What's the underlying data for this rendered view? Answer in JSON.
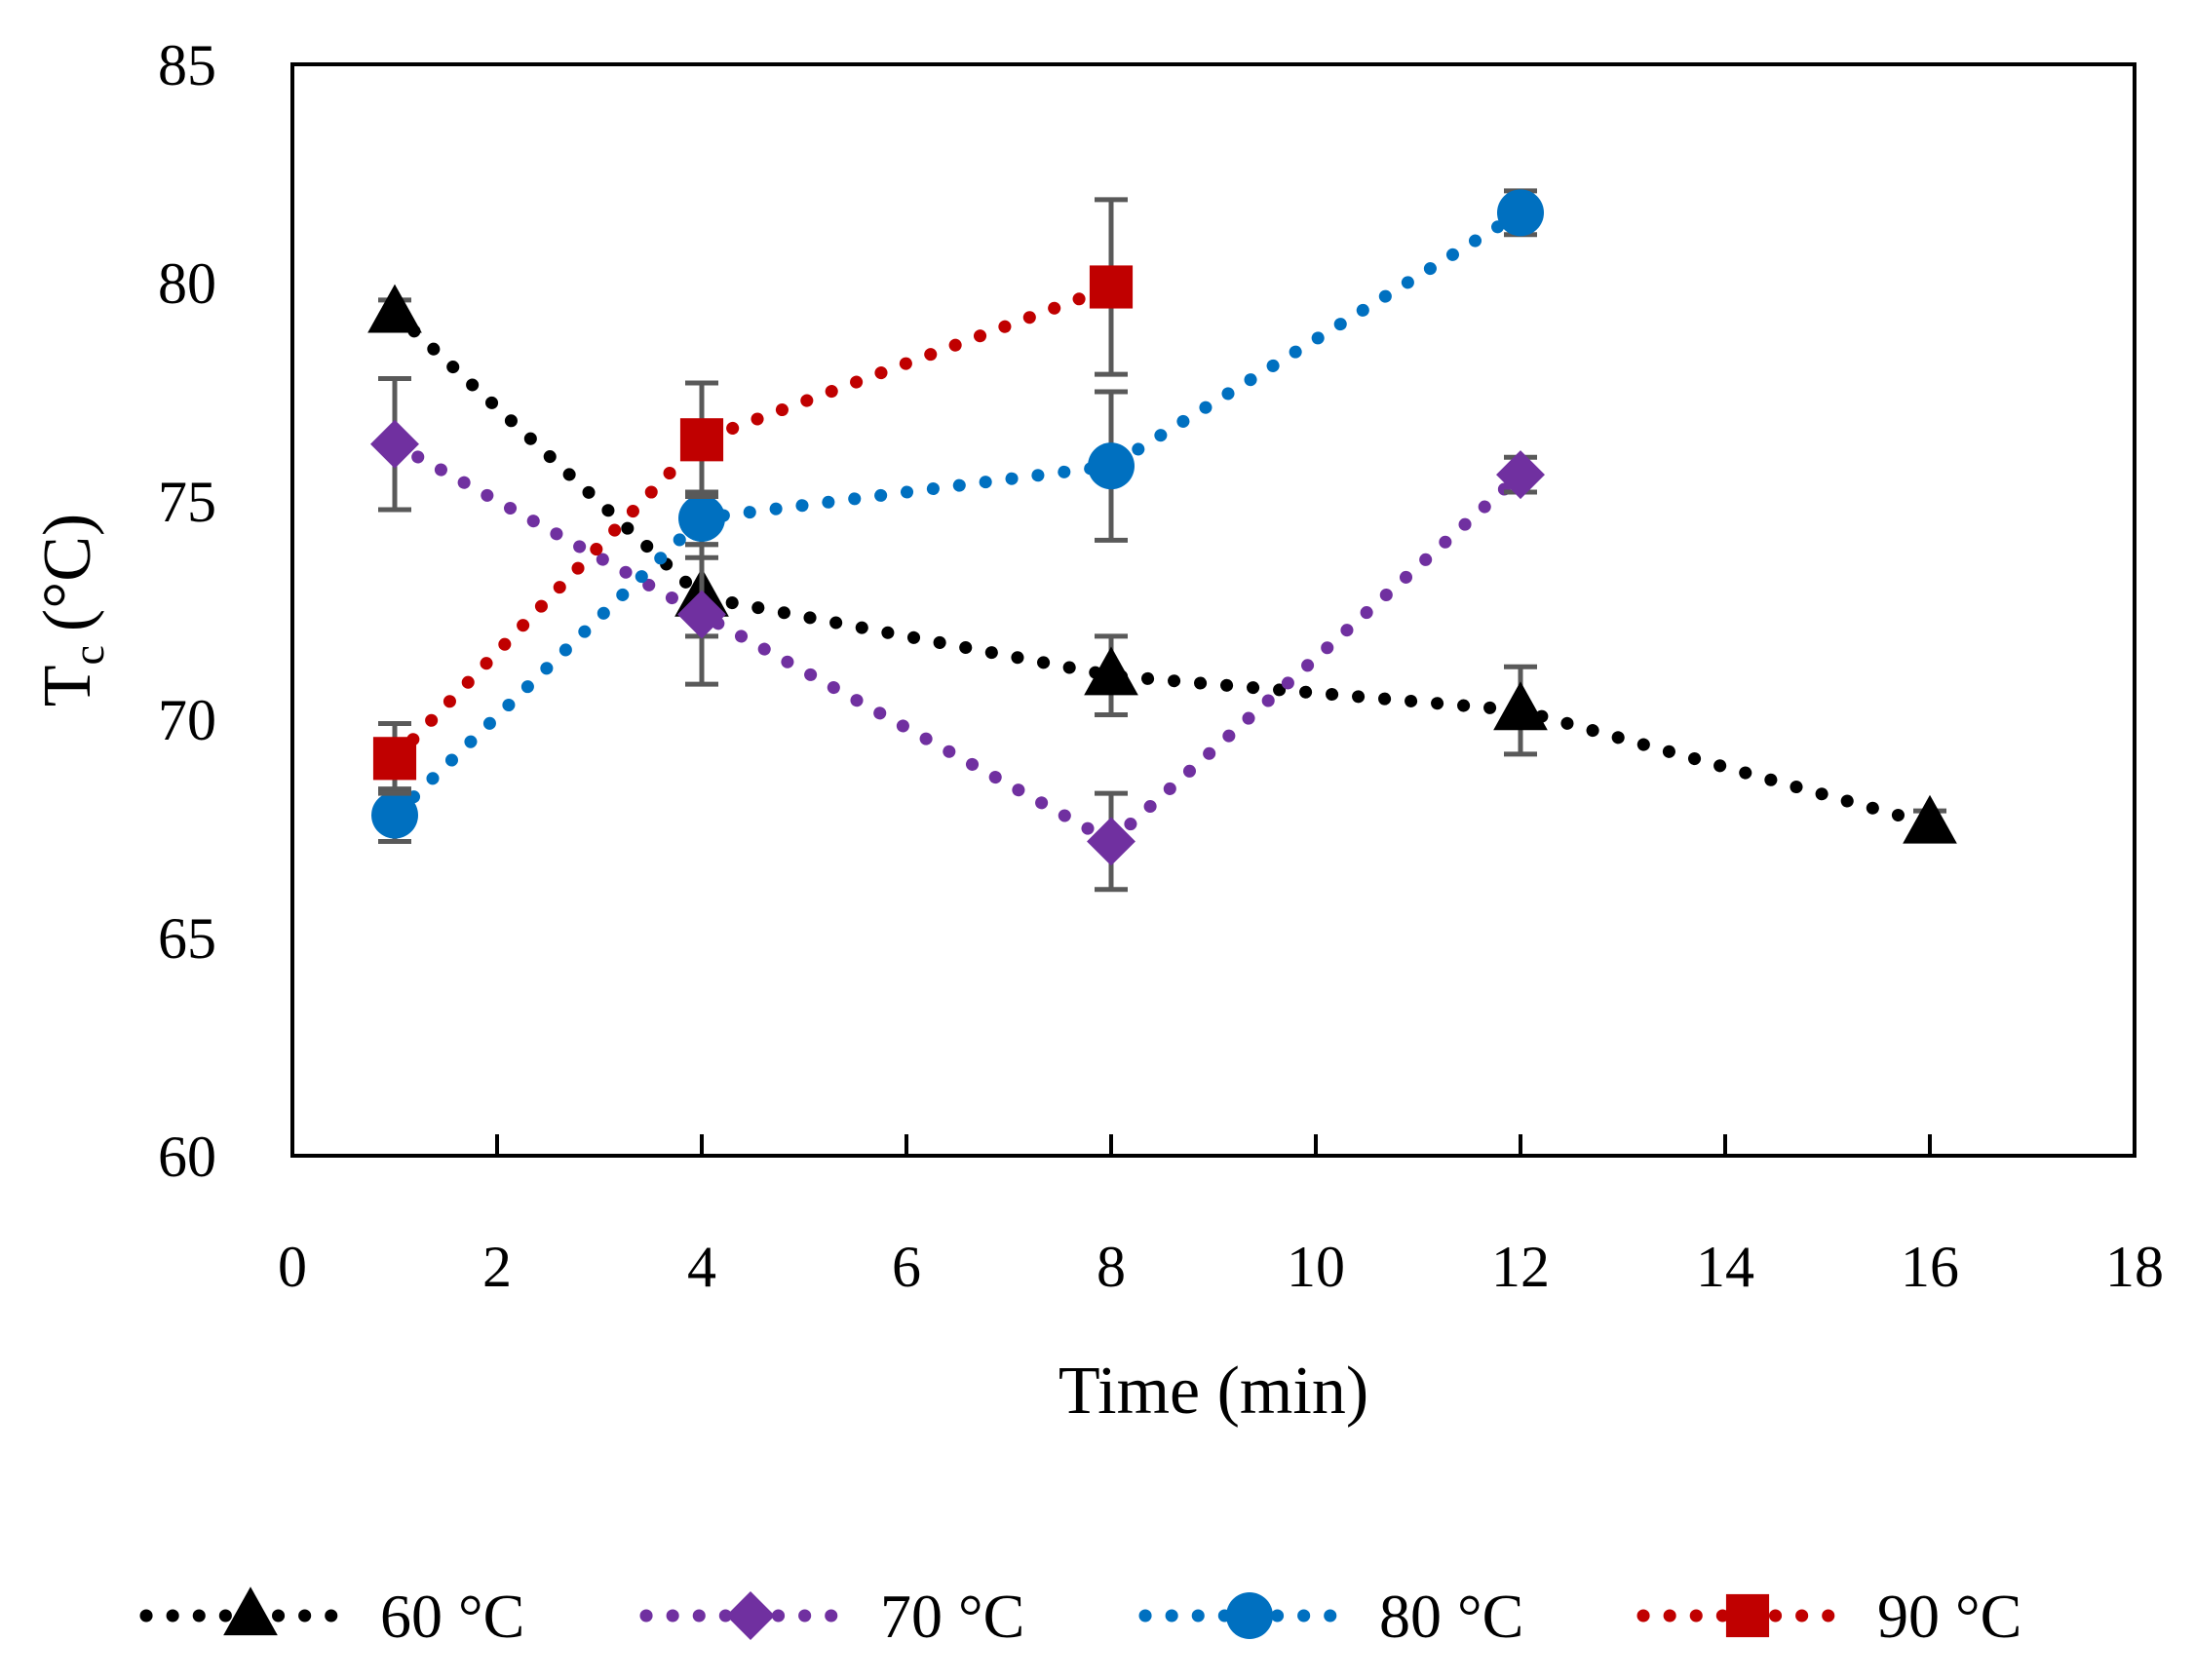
{
  "chart_data": {
    "type": "line",
    "xlabel": "Time (min)",
    "ylabel_main": "T",
    "ylabel_sub": "c",
    "ylabel_unit": "(°C)",
    "xlim": [
      0,
      18
    ],
    "ylim": [
      60,
      85
    ],
    "xticks": [
      "0",
      "2",
      "4",
      "6",
      "8",
      "10",
      "12",
      "14",
      "16",
      "18"
    ],
    "yticks": [
      "60",
      "65",
      "70",
      "75",
      "80",
      "85"
    ],
    "grid": false,
    "legend_position": "bottom",
    "series": [
      {
        "name": "60 °C",
        "color": "#000000",
        "marker": "triangle",
        "x": [
          1,
          4,
          8,
          12,
          16
        ],
        "y": [
          79.3,
          72.8,
          71.0,
          70.2,
          67.6
        ],
        "err": [
          0.3,
          0.9,
          0.9,
          1.0,
          0.3
        ]
      },
      {
        "name": "70 °C",
        "color": "#7030a0",
        "marker": "diamond",
        "x": [
          1,
          4,
          8,
          12
        ],
        "y": [
          76.3,
          72.4,
          67.2,
          75.6
        ],
        "err": [
          1.5,
          1.6,
          1.1,
          0.4
        ]
      },
      {
        "name": "80 °C",
        "color": "#0070c0",
        "marker": "circle",
        "x": [
          1,
          4,
          8,
          12
        ],
        "y": [
          67.8,
          74.6,
          75.8,
          81.6
        ],
        "err": [
          0.6,
          0.6,
          1.7,
          0.5
        ]
      },
      {
        "name": "90 °C",
        "color": "#c00000",
        "marker": "square",
        "x": [
          1,
          4,
          8
        ],
        "y": [
          69.1,
          76.4,
          79.9
        ],
        "err": [
          0.8,
          1.3,
          2.0
        ]
      }
    ]
  }
}
